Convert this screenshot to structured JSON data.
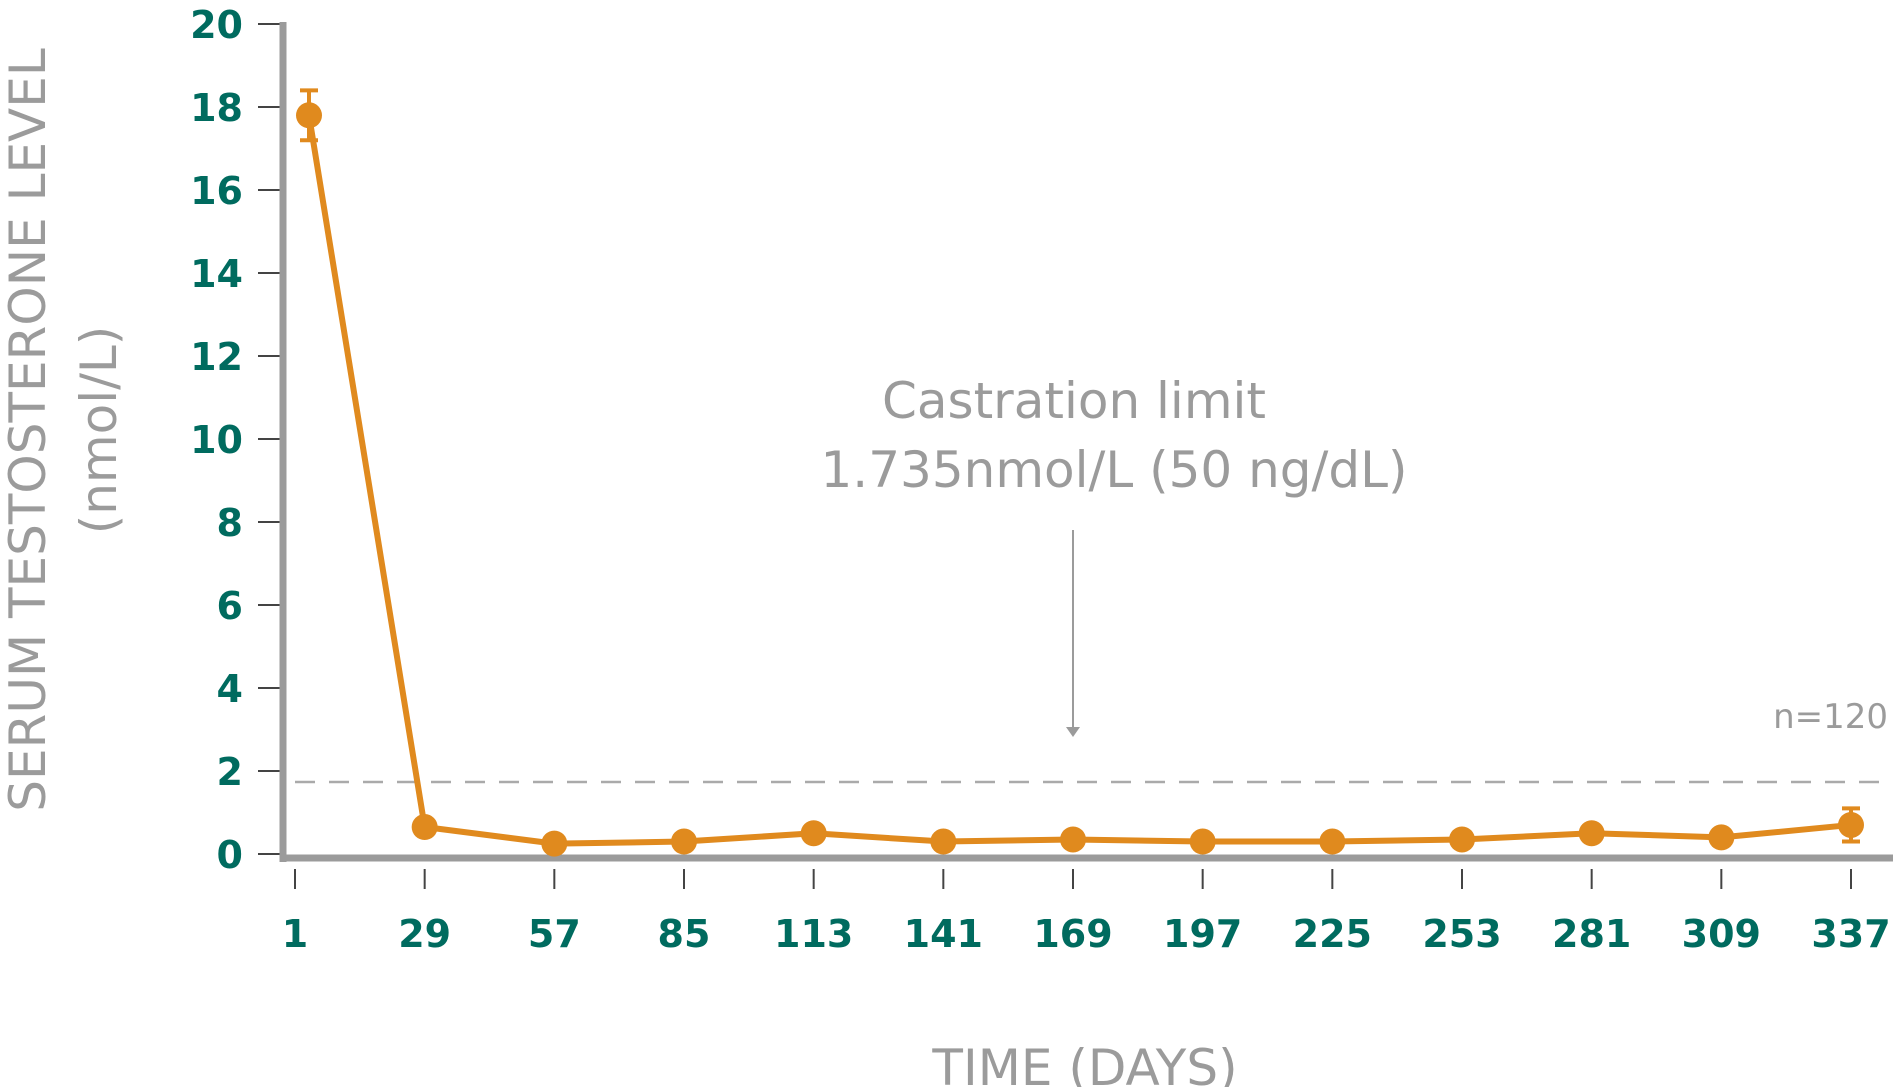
{
  "chart_data": {
    "type": "line",
    "xlabel": "TIME (DAYS)",
    "ylabel": "SERUM TESTOSTERONE LEVEL",
    "ylabel_unit": "(nmol/L)",
    "x": [
      1,
      29,
      57,
      85,
      113,
      141,
      169,
      197,
      225,
      253,
      281,
      309,
      337
    ],
    "x_tick_labels": [
      "1",
      "29",
      "57",
      "85",
      "113",
      "141",
      "169",
      "197",
      "225",
      "253",
      "281",
      "309",
      "337"
    ],
    "series": [
      {
        "values": [
          17.8,
          0.65,
          0.25,
          0.3,
          0.5,
          0.3,
          0.35,
          0.3,
          0.3,
          0.35,
          0.5,
          0.4,
          0.7
        ],
        "error_bars": [
          [
            17.2,
            18.4
          ],
          null,
          null,
          null,
          null,
          null,
          null,
          null,
          null,
          null,
          null,
          null,
          [
            0.3,
            1.1
          ]
        ]
      }
    ],
    "ylim": [
      0,
      20
    ],
    "y_ticks": [
      0,
      2,
      4,
      6,
      8,
      10,
      12,
      14,
      16,
      18,
      20
    ],
    "reference_line": {
      "value": 1.735,
      "style": "dashed"
    },
    "annotation_line1": "Castration limit",
    "annotation_line2": "1.735nmol/L (50 ng/dL)",
    "sample_note": "n=120",
    "grid": false,
    "colors": {
      "series": "#e08a1e",
      "ticks": "#006b5f",
      "axis": "#9b9b9b",
      "text": "#9b9b9b"
    }
  }
}
